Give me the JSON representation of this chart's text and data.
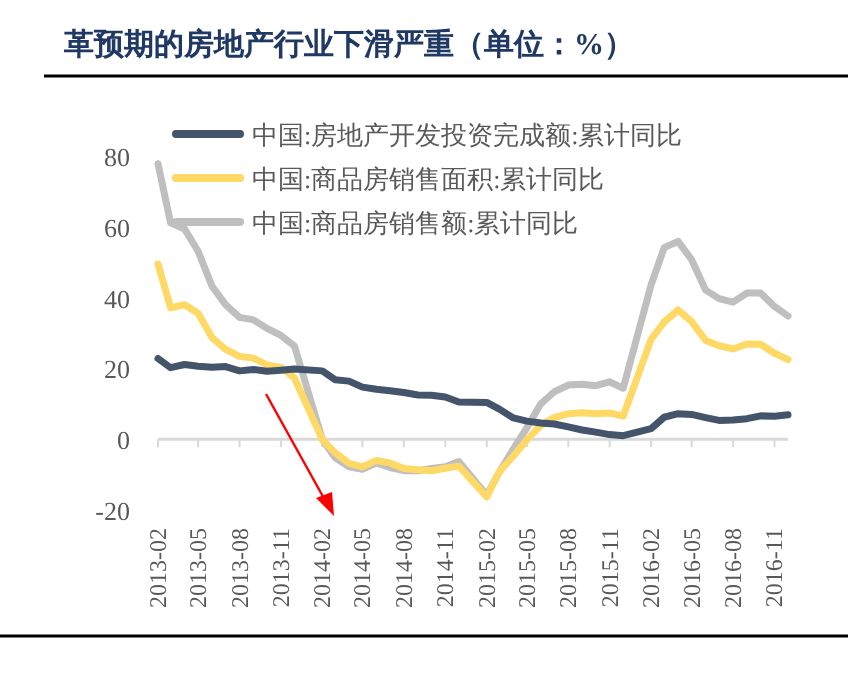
{
  "chart_data": {
    "type": "line",
    "title": "革预期的房地产行业下滑严重（单位：%）",
    "x": [
      "2013-02",
      "2013-03",
      "2013-04",
      "2013-05",
      "2013-06",
      "2013-07",
      "2013-08",
      "2013-09",
      "2013-10",
      "2013-11",
      "2013-12",
      "2014-02",
      "2014-03",
      "2014-04",
      "2014-05",
      "2014-06",
      "2014-07",
      "2014-08",
      "2014-09",
      "2014-10",
      "2014-11",
      "2014-12",
      "2015-02",
      "2015-03",
      "2015-04",
      "2015-05",
      "2015-06",
      "2015-07",
      "2015-08",
      "2015-09",
      "2015-10",
      "2015-11",
      "2015-12",
      "2016-02",
      "2016-03",
      "2016-04",
      "2016-05",
      "2016-06",
      "2016-07",
      "2016-08",
      "2016-09",
      "2016-10",
      "2016-11",
      "2016-12"
    ],
    "series": [
      {
        "name": "中国:房地产开发投资完成额:累计同比",
        "color": "#44546a",
        "values": [
          22.8,
          20.2,
          21.1,
          20.6,
          20.3,
          20.5,
          19.3,
          19.7,
          19.2,
          19.5,
          19.8,
          19.3,
          16.8,
          16.4,
          14.7,
          14.1,
          13.7,
          13.2,
          12.5,
          12.4,
          11.9,
          10.5,
          10.4,
          8.5,
          6.0,
          5.1,
          4.6,
          4.3,
          3.5,
          2.6,
          2.0,
          1.3,
          1.0,
          3.0,
          6.2,
          7.2,
          7.0,
          6.1,
          5.3,
          5.4,
          5.8,
          6.6,
          6.5,
          6.9
        ]
      },
      {
        "name": "中国:商品房销售面积:累计同比",
        "color": "#ffd966",
        "values": [
          49.5,
          37.1,
          38.0,
          35.6,
          28.7,
          25.4,
          23.4,
          22.9,
          21.0,
          20.3,
          17.3,
          -0.1,
          -3.8,
          -6.8,
          -7.8,
          -6.0,
          -6.7,
          -8.3,
          -8.6,
          -8.9,
          -8.2,
          -7.6,
          -16.3,
          -9.2,
          -4.8,
          -0.2,
          3.9,
          6.1,
          7.2,
          7.5,
          7.2,
          7.4,
          6.5,
          28.2,
          33.1,
          36.5,
          33.2,
          27.9,
          26.4,
          25.5,
          26.9,
          26.8,
          24.3,
          22.5
        ]
      },
      {
        "name": "中国:商品房销售额:累计同比",
        "color": "#bfbfbf",
        "values": [
          77.8,
          61.1,
          59.4,
          53.1,
          43.2,
          38.0,
          34.4,
          33.7,
          31.3,
          29.3,
          26.3,
          -0.1,
          -5.2,
          -7.8,
          -8.5,
          -6.7,
          -8.0,
          -8.9,
          -8.9,
          -8.3,
          -7.8,
          -6.3,
          -15.8,
          -9.3,
          -2.8,
          3.2,
          10.0,
          13.4,
          15.3,
          15.5,
          15.1,
          16.2,
          14.4,
          43.6,
          54.1,
          55.9,
          50.7,
          42.1,
          39.7,
          38.7,
          41.3,
          41.3,
          37.5,
          34.8
        ]
      }
    ],
    "xlim": [
      "2013-02",
      "2016-12"
    ],
    "xticks": [
      "2013-02",
      "2013-05",
      "2013-08",
      "2013-11",
      "2014-02",
      "2014-05",
      "2014-08",
      "2014-11",
      "2015-02",
      "2015-05",
      "2015-08",
      "2015-11",
      "2016-02",
      "2016-05",
      "2016-08",
      "2016-11"
    ],
    "ylim": [
      -20,
      80
    ],
    "yticks": [
      -20,
      0,
      20,
      40,
      60,
      80
    ],
    "legend": "top",
    "marker": "none",
    "line_style": "solid"
  }
}
